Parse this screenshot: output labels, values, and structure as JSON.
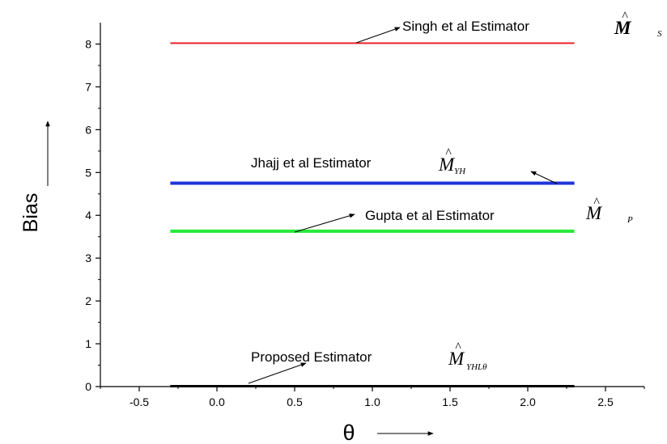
{
  "chart_data": {
    "type": "line",
    "xlabel": "θ",
    "ylabel": "Bias",
    "xlim": [
      -0.75,
      2.75
    ],
    "ylim": [
      0,
      8.5
    ],
    "xticks": [
      -0.5,
      0.0,
      0.5,
      1.0,
      1.5,
      2.0,
      2.5
    ],
    "xtick_labels": [
      "-0.5",
      "0.0",
      "0.5",
      "1.0",
      "1.5",
      "2.0",
      "2.5"
    ],
    "yticks": [
      0,
      1,
      2,
      3,
      4,
      5,
      6,
      7,
      8
    ],
    "ytick_labels": [
      "0",
      "1",
      "2",
      "3",
      "4",
      "5",
      "6",
      "7",
      "8"
    ],
    "grid": false,
    "series": [
      {
        "name": "Singh et al Estimator",
        "symbol": "M",
        "subscript": "S",
        "color": "#e8242c",
        "x": [
          -0.3,
          2.3
        ],
        "y": [
          8.02,
          8.02
        ]
      },
      {
        "name": "Jhajj et al Estimator",
        "symbol": "M",
        "subscript": "YH",
        "color": "#1f34d8",
        "x": [
          -0.3,
          2.3
        ],
        "y": [
          4.75,
          4.75
        ]
      },
      {
        "name": "Gupta et al Estimator",
        "symbol": "M",
        "subscript": "P",
        "color": "#26e83a",
        "x": [
          -0.3,
          2.3
        ],
        "y": [
          3.63,
          3.63
        ]
      },
      {
        "name": "Proposed Estimator",
        "symbol": "M",
        "subscript": "YHLθ",
        "color": "#000000",
        "x": [
          -0.3,
          2.3
        ],
        "y": [
          0.01,
          0.01
        ]
      }
    ]
  }
}
